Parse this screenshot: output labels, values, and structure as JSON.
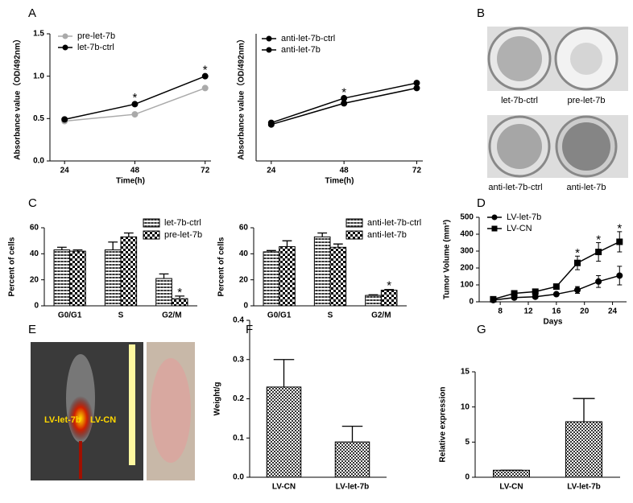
{
  "panel_labels": [
    "A",
    "B",
    "C",
    "D",
    "E",
    "F",
    "G"
  ],
  "photo_labels": {
    "B": [
      "let-7b-ctrl",
      "pre-let-7b",
      "anti-let-7b-ctrl",
      "anti-let-7b"
    ],
    "E": [
      "LV-let-7b",
      "LV-CN"
    ]
  },
  "chart_data": [
    {
      "type": "line",
      "x": [
        24,
        48,
        72
      ],
      "xlim": [
        19,
        74
      ],
      "xticks": [
        24,
        48,
        72
      ],
      "ylim": [
        0,
        1.5
      ],
      "yticks": [
        {
          "value": 0,
          "label": "0.0"
        },
        {
          "value": 0.5,
          "label": "0.5"
        },
        {
          "value": 1,
          "label": "1.0"
        },
        {
          "value": 1.5,
          "label": "1.5"
        }
      ],
      "xlabel": "Time(h)",
      "ylabel": "Absorbance value（OD/492nm）",
      "series": [
        {
          "name": "pre-let-7b",
          "color": "#aaaaaa",
          "values": [
            0.47,
            0.55,
            0.86
          ]
        },
        {
          "name": "let-7b-ctrl",
          "color": "#000000",
          "values": [
            0.49,
            0.67,
            1.0
          ]
        }
      ],
      "annotations": [
        {
          "text": "*",
          "x": 48,
          "y": 0.74
        },
        {
          "text": "*",
          "x": 72,
          "y": 1.07
        }
      ]
    },
    {
      "type": "line",
      "x": [
        24,
        48,
        72
      ],
      "xlim": [
        19,
        74
      ],
      "xticks": [
        24,
        48,
        72
      ],
      "ylim": [
        0,
        1.5
      ],
      "xlabel": "Time(h)",
      "ylabel": "Absorbance value（OD/492nm）",
      "series": [
        {
          "name": "anti-let-7b-ctrl",
          "color": "#000000",
          "values": [
            0.45,
            0.74,
            0.92
          ]
        },
        {
          "name": "anti-let-7b",
          "color": "#000000",
          "values": [
            0.43,
            0.68,
            0.86
          ]
        }
      ],
      "annotations": [
        {
          "text": "*",
          "x": 48,
          "y": 0.8
        }
      ]
    },
    {
      "type": "bar",
      "categories": [
        "G0/G1",
        "S",
        "G2/M"
      ],
      "ylim": [
        0,
        60
      ],
      "yticks": [
        0,
        20,
        40,
        60
      ],
      "ylabel": "Percent of cells",
      "series": [
        {
          "name": "let-7b-ctrl",
          "values": [
            43,
            43,
            21
          ],
          "errors": [
            2,
            6,
            3.5
          ]
        },
        {
          "name": "pre-let-7b",
          "values": [
            42,
            53,
            5.5
          ],
          "errors": [
            1,
            3,
            2
          ]
        }
      ],
      "annotations": [
        {
          "text": "*",
          "category": 2,
          "series": 1,
          "y": 10
        }
      ]
    },
    {
      "type": "bar",
      "categories": [
        "G0/G1",
        "S",
        "G2/M"
      ],
      "ylim": [
        0,
        60
      ],
      "yticks": [
        0,
        20,
        40,
        60
      ],
      "ylabel": "Percent of cells",
      "series": [
        {
          "name": "anti-let-7b-ctrl",
          "values": [
            41.5,
            53,
            8
          ],
          "errors": [
            1,
            3,
            0.5
          ]
        },
        {
          "name": "anti-let-7b",
          "values": [
            45.5,
            45,
            12
          ],
          "errors": [
            4.5,
            2.5,
            0.5
          ]
        }
      ],
      "annotations": [
        {
          "text": "*",
          "category": 2,
          "series": 1,
          "y": 15
        }
      ]
    },
    {
      "type": "line",
      "x": [
        7,
        10,
        13,
        16,
        19,
        22,
        25
      ],
      "xlim": [
        5,
        26
      ],
      "xticks": [
        8,
        12,
        16,
        20,
        24
      ],
      "ylim": [
        0,
        500
      ],
      "yticks": [
        0,
        100,
        200,
        300,
        400,
        500
      ],
      "xlabel": "Days",
      "ylabel": "Tumor Volume (mm³)",
      "series": [
        {
          "name": "LV-let-7b",
          "color": "#000000",
          "marker": "circle",
          "values": [
            10,
            25,
            30,
            45,
            70,
            120,
            155
          ],
          "errors": [
            3,
            8,
            8,
            10,
            20,
            35,
            55
          ]
        },
        {
          "name": "LV-CN",
          "color": "#000000",
          "marker": "square",
          "values": [
            15,
            50,
            60,
            90,
            230,
            295,
            355
          ],
          "errors": [
            5,
            10,
            12,
            15,
            40,
            55,
            60
          ]
        }
      ],
      "annotations": [
        {
          "text": "*",
          "x": 19,
          "y": 285
        },
        {
          "text": "*",
          "x": 22,
          "y": 365
        },
        {
          "text": "*",
          "x": 25,
          "y": 430
        }
      ]
    },
    {
      "type": "bar",
      "categories": [
        "LV-CN",
        "LV-let-7b"
      ],
      "ylim": [
        0,
        0.4
      ],
      "yticks": [
        {
          "value": 0,
          "label": "0.0"
        },
        0.1,
        0.2,
        0.3,
        0.4
      ],
      "ylabel": "Weight/g",
      "values": [
        0.23,
        0.09
      ],
      "errors": [
        0.07,
        0.04
      ]
    },
    {
      "type": "bar",
      "categories": [
        "LV-CN",
        "LV-let-7b"
      ],
      "ylim": [
        0,
        15
      ],
      "yticks": [
        0,
        5,
        10,
        15
      ],
      "ylabel": "Relative expression",
      "values": [
        1,
        7.9
      ],
      "errors": [
        0,
        3.3
      ]
    }
  ]
}
